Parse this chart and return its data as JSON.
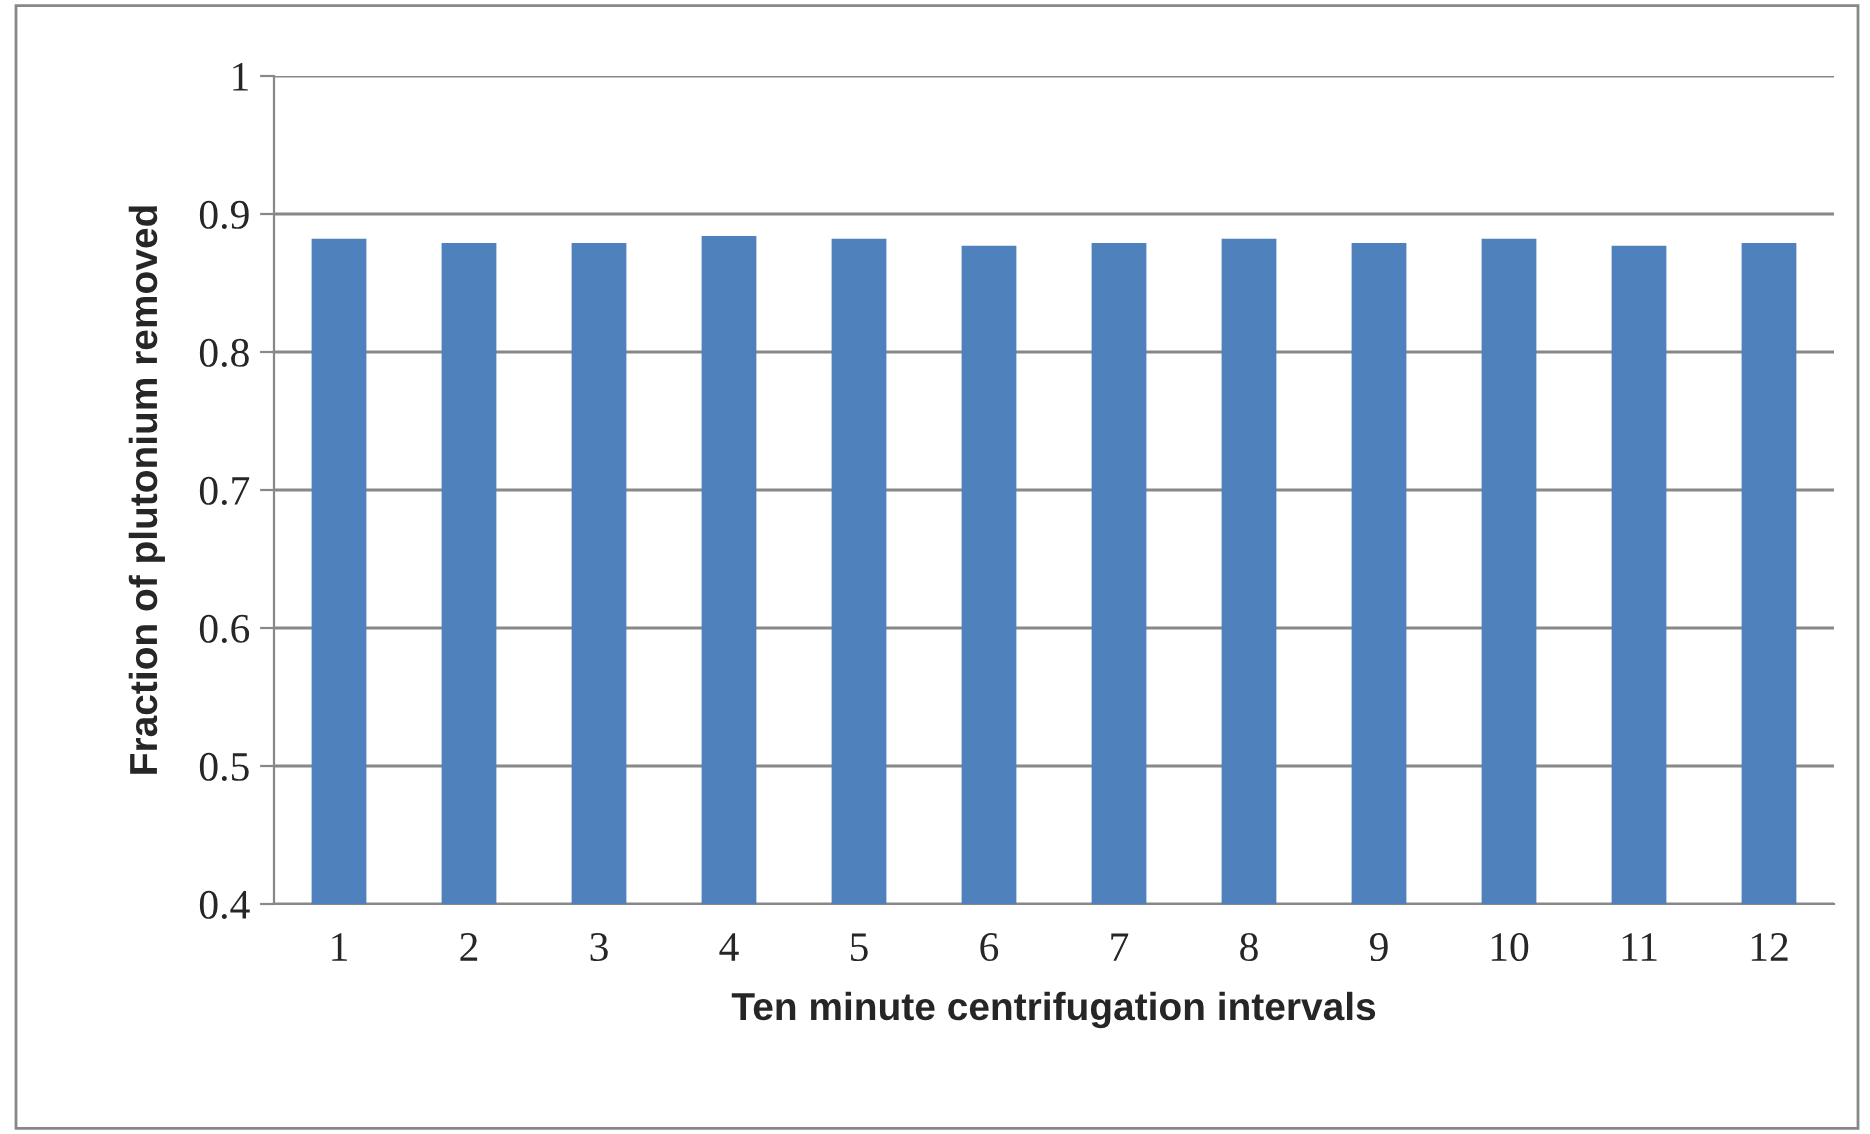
{
  "chart_data": {
    "type": "bar",
    "xlabel": "Ten minute centrifugation intervals",
    "ylabel": "Fraction of plutonium removed",
    "categories": [
      "1",
      "2",
      "3",
      "4",
      "5",
      "6",
      "7",
      "8",
      "9",
      "10",
      "11",
      "12"
    ],
    "values": [
      0.881,
      0.878,
      0.878,
      0.883,
      0.881,
      0.876,
      0.878,
      0.881,
      0.878,
      0.881,
      0.876,
      0.878
    ],
    "color": "#4f81bd",
    "ylim": [
      0.4,
      1
    ],
    "yticks": [
      0.4,
      0.5,
      0.6,
      0.7,
      0.8,
      0.9,
      1
    ],
    "grid": "y",
    "legend": false
  }
}
